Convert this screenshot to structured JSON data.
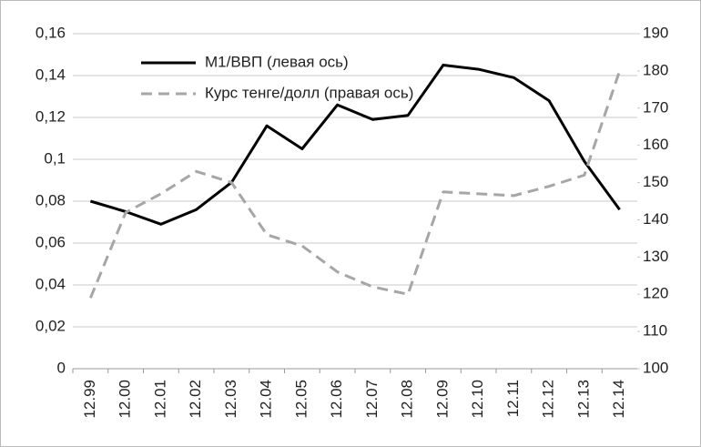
{
  "chart_data": {
    "type": "line",
    "categories": [
      "12.99",
      "12.00",
      "12.01",
      "12.02",
      "12.03",
      "12.04",
      "12.05",
      "12.06",
      "12.07",
      "12.08",
      "12.09",
      "12.10",
      "12.11",
      "12.12",
      "12.13",
      "12.14"
    ],
    "series": [
      {
        "name": "M1/ВВП (левая ось)",
        "color": "#000000",
        "dash": false,
        "values": [
          0.08,
          0.075,
          0.069,
          0.076,
          0.089,
          0.116,
          0.105,
          0.126,
          0.119,
          0.121,
          0.145,
          0.143,
          0.139,
          0.128,
          0.099,
          0.076
        ]
      },
      {
        "name": "Курс тенге/долл (правая ось)",
        "color": "#a6a6a6",
        "dash": true,
        "axis": "y2",
        "values": [
          119,
          142,
          147,
          153,
          150,
          136,
          133,
          126,
          122,
          120,
          147.5,
          147,
          146.5,
          149,
          152,
          180
        ]
      }
    ],
    "ylim": [
      0,
      0.16
    ],
    "yticks": [
      0,
      {
        "value": 0.02,
        "label": "0,02"
      },
      {
        "value": 0.04,
        "label": "0,04"
      },
      {
        "value": 0.06,
        "label": "0,06"
      },
      {
        "value": 0.08,
        "label": "0,08"
      },
      {
        "value": 0.1,
        "label": "0,1"
      },
      {
        "value": 0.12,
        "label": "0,12"
      },
      {
        "value": 0.14,
        "label": "0,14"
      },
      {
        "value": 0.16,
        "label": "0,16"
      }
    ],
    "y2lim": [
      100,
      190
    ],
    "y2ticks": [
      100,
      110,
      120,
      130,
      140,
      150,
      160,
      170,
      180,
      190
    ],
    "grid": true
  }
}
